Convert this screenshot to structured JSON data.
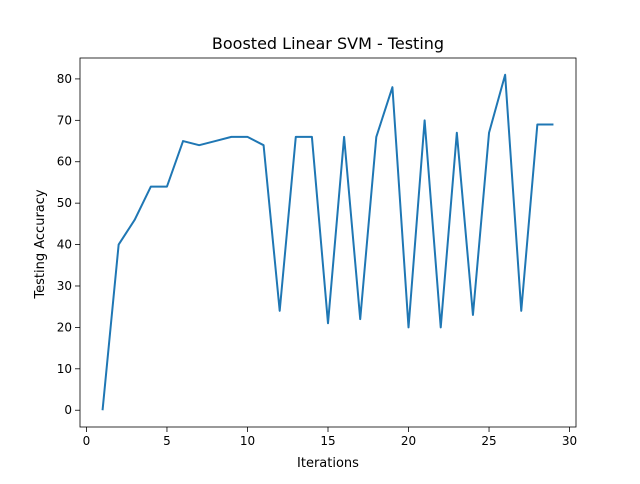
{
  "chart_data": {
    "type": "line",
    "title": "Boosted Linear SVM - Testing",
    "xlabel": "Iterations",
    "ylabel": "Testing Accuracy",
    "xlim": [
      -0.4,
      30.4
    ],
    "ylim": [
      -4.05,
      85.05
    ],
    "xticks": [
      0,
      5,
      10,
      15,
      20,
      25,
      30
    ],
    "yticks": [
      0,
      10,
      20,
      30,
      40,
      50,
      60,
      70,
      80
    ],
    "grid": false,
    "legend": "none",
    "series": [
      {
        "color": "#1f77b4",
        "x": [
          1,
          2,
          3,
          4,
          5,
          6,
          7,
          8,
          9,
          10,
          11,
          12,
          13,
          14,
          15,
          16,
          17,
          18,
          19,
          20,
          21,
          22,
          23,
          24,
          25,
          26,
          27,
          28,
          29
        ],
        "y": [
          0,
          40,
          46,
          54,
          54,
          65,
          64,
          65,
          66,
          66,
          64,
          24,
          66,
          66,
          21,
          66,
          22,
          66,
          78,
          20,
          70,
          20,
          67,
          23,
          67,
          81,
          24,
          69,
          69
        ]
      }
    ]
  }
}
